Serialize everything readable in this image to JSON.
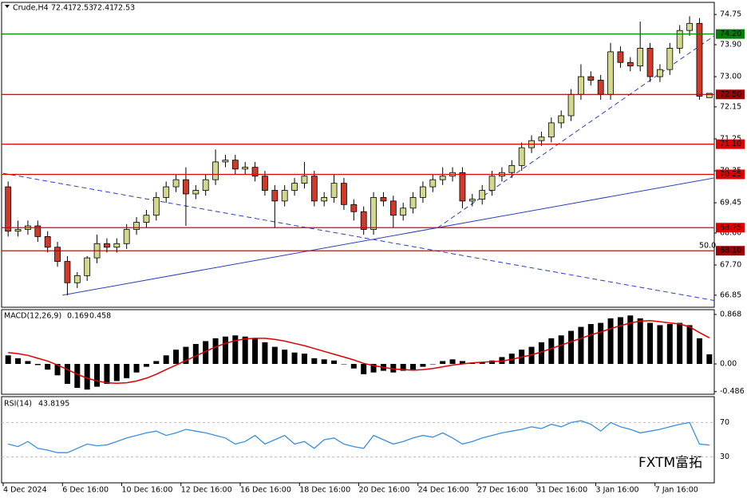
{
  "chart_data": {
    "type": "candlestick",
    "symbol": "Crude,H4",
    "ohlc_header": [
      72.41,
      72.53,
      72.41,
      72.53
    ],
    "xlim": [
      0,
      72
    ],
    "xticks": [
      {
        "value": 0,
        "label": "4 Dec 2024"
      },
      {
        "value": 6,
        "label": "6 Dec 16:00"
      },
      {
        "value": 12,
        "label": "10 Dec 16:00"
      },
      {
        "value": 18,
        "label": "12 Dec 16:00"
      },
      {
        "value": 24,
        "label": "16 Dec 16:00"
      },
      {
        "value": 30,
        "label": "18 Dec 16:00"
      },
      {
        "value": 36,
        "label": "20 Dec 16:00"
      },
      {
        "value": 42,
        "label": "24 Dec 16:00"
      },
      {
        "value": 48,
        "label": "27 Dec 16:00"
      },
      {
        "value": 54,
        "label": "31 Dec 16:00"
      },
      {
        "value": 60,
        "label": "3 Jan 16:00"
      },
      {
        "value": 66,
        "label": "7 Jan 16:00"
      }
    ],
    "ylim": [
      66.51,
      75.09
    ],
    "yticks": [
      74.75,
      {
        "value": 73.9,
        "label": "73.90"
      },
      {
        "value": 73,
        "label": "73.00"
      },
      72.15,
      71.25,
      70.35,
      69.45,
      {
        "value": 68.6,
        "label": "68.60"
      },
      {
        "value": 67.7,
        "label": "67.70"
      },
      66.85
    ],
    "colors": {
      "up": "#d2d98f",
      "down": "#d03a2a",
      "outline": "#000000"
    },
    "open": [
      69.9,
      68.65,
      68.7,
      68.8,
      68.5,
      68.2,
      67.8,
      67.2,
      67.4,
      67.9,
      68.3,
      68.2,
      68.3,
      68.7,
      68.9,
      69.1,
      69.6,
      69.9,
      70.1,
      69.7,
      69.8,
      70.1,
      70.6,
      70.65,
      70.4,
      70.45,
      70.2,
      69.8,
      69.5,
      69.8,
      70.0,
      70.2,
      69.5,
      69.6,
      70.0,
      69.4,
      69.2,
      68.7,
      69.6,
      69.5,
      69.1,
      69.3,
      69.6,
      69.9,
      70.1,
      70.2,
      70.3,
      69.5,
      69.55,
      69.8,
      70.2,
      70.3,
      70.5,
      71.0,
      71.2,
      71.3,
      71.7,
      71.9,
      72.5,
      73.0,
      72.9,
      72.5,
      73.7,
      73.4,
      73.3,
      73.8,
      73.0,
      73.2,
      73.8,
      74.3,
      74.5,
      72.41
    ],
    "high": [
      70.05,
      68.95,
      68.95,
      68.95,
      68.65,
      68.35,
      67.95,
      67.5,
      67.95,
      68.55,
      68.45,
      68.45,
      68.85,
      69.05,
      69.25,
      69.75,
      70.05,
      70.25,
      70.45,
      69.95,
      70.25,
      70.95,
      70.8,
      70.8,
      70.6,
      70.6,
      70.35,
      69.95,
      69.95,
      70.15,
      70.6,
      70.35,
      69.75,
      70.25,
      70.15,
      69.55,
      69.35,
      69.75,
      69.75,
      69.65,
      69.45,
      69.75,
      70.05,
      70.25,
      70.45,
      70.45,
      70.45,
      69.7,
      69.95,
      70.35,
      70.45,
      70.65,
      71.15,
      71.35,
      71.45,
      71.85,
      72.05,
      72.65,
      73.35,
      73.15,
      73.05,
      73.95,
      73.85,
      73.55,
      74.55,
      73.95,
      73.35,
      73.95,
      74.45,
      74.7,
      74.65,
      72.53
    ],
    "low": [
      68.5,
      68.5,
      68.55,
      68.35,
      68.05,
      67.65,
      66.85,
      67.05,
      67.25,
      67.75,
      68.05,
      68.05,
      68.15,
      68.55,
      68.75,
      68.95,
      69.45,
      69.75,
      68.8,
      69.55,
      69.65,
      69.95,
      70.45,
      70.25,
      70.25,
      70.05,
      69.65,
      68.75,
      69.35,
      69.65,
      69.85,
      69.35,
      69.35,
      69.45,
      69.25,
      68.95,
      68.55,
      68.55,
      69.35,
      68.75,
      68.95,
      69.15,
      69.45,
      69.75,
      69.95,
      70.05,
      69.3,
      69.35,
      69.4,
      69.65,
      70.05,
      70.15,
      70.35,
      70.85,
      71.05,
      71.15,
      71.55,
      71.75,
      72.35,
      72.75,
      72.35,
      72.35,
      73.25,
      73.15,
      73.15,
      72.85,
      72.85,
      73.05,
      73.65,
      74.15,
      72.35,
      72.41
    ],
    "close": [
      68.65,
      68.7,
      68.8,
      68.5,
      68.2,
      67.8,
      67.2,
      67.4,
      67.9,
      68.3,
      68.2,
      68.3,
      68.7,
      68.9,
      69.1,
      69.6,
      69.9,
      70.1,
      69.7,
      69.8,
      70.1,
      70.6,
      70.65,
      70.4,
      70.45,
      70.2,
      69.8,
      69.5,
      69.8,
      70.0,
      70.2,
      69.5,
      69.6,
      70.0,
      69.4,
      69.2,
      68.7,
      69.6,
      69.5,
      69.1,
      69.3,
      69.6,
      69.9,
      70.1,
      70.2,
      70.3,
      69.5,
      69.55,
      69.8,
      70.2,
      70.3,
      70.5,
      71.0,
      71.2,
      71.3,
      71.7,
      71.9,
      72.5,
      73.0,
      72.9,
      72.5,
      73.7,
      73.4,
      73.3,
      73.8,
      73.0,
      73.2,
      73.8,
      74.3,
      74.5,
      72.45,
      72.53
    ],
    "levels": [
      {
        "value": 74.2,
        "label": "74.20",
        "color": "#008000"
      },
      {
        "value": 72.5,
        "label": "72.50",
        "color": "#a00000"
      },
      {
        "value": 71.1,
        "label": "71.10",
        "color": "#e00000"
      },
      {
        "value": 70.25,
        "color": "#e00000"
      },
      {
        "value": 68.75,
        "color": "#e00000"
      },
      {
        "value": 68.1,
        "label": "68.10",
        "color": "#a00000"
      }
    ],
    "fib_label": "50.0",
    "trendlines": [
      {
        "from": [
          6,
          66.85
        ],
        "to": [
          72,
          70.15
        ],
        "style": "solid",
        "color": "#2a3fbf"
      },
      {
        "from": [
          0,
          70.28
        ],
        "to": [
          72,
          66.7
        ],
        "style": "dashed",
        "color": "#2a3fbf"
      },
      {
        "from": [
          44,
          68.75
        ],
        "to": [
          72,
          74.15
        ],
        "style": "dashed",
        "color": "#2a3fbf"
      }
    ],
    "macd": {
      "label": "MACD(12,26,9)",
      "ylim": [
        -0.532,
        0.952
      ],
      "yticks": [
        0.868,
        {
          "value": 0,
          "label": "0.00"
        },
        -0.486
      ],
      "histogram": {
        "color": "#000000",
        "values": [
          0.15,
          0.1,
          0.05,
          -0.02,
          -0.1,
          -0.2,
          -0.35,
          -0.42,
          -0.45,
          -0.4,
          -0.35,
          -0.3,
          -0.25,
          -0.15,
          -0.05,
          0.05,
          0.15,
          0.25,
          0.3,
          0.35,
          0.4,
          0.45,
          0.48,
          0.5,
          0.48,
          0.45,
          0.38,
          0.3,
          0.25,
          0.2,
          0.18,
          0.1,
          0.08,
          0.06,
          0.0,
          -0.08,
          -0.18,
          -0.15,
          -0.12,
          -0.15,
          -0.12,
          -0.1,
          -0.05,
          0.0,
          0.05,
          0.08,
          0.05,
          0.02,
          0.03,
          0.06,
          0.12,
          0.18,
          0.25,
          0.3,
          0.38,
          0.45,
          0.5,
          0.58,
          0.65,
          0.7,
          0.72,
          0.8,
          0.82,
          0.85,
          0.8,
          0.72,
          0.68,
          0.7,
          0.72,
          0.68,
          0.45,
          0.169
        ]
      },
      "signal": {
        "color": "#e00000",
        "values": [
          0.2,
          0.18,
          0.15,
          0.1,
          0.05,
          -0.02,
          -0.1,
          -0.18,
          -0.25,
          -0.3,
          -0.33,
          -0.34,
          -0.33,
          -0.3,
          -0.25,
          -0.18,
          -0.1,
          -0.02,
          0.06,
          0.14,
          0.22,
          0.3,
          0.36,
          0.41,
          0.44,
          0.45,
          0.45,
          0.43,
          0.4,
          0.36,
          0.32,
          0.27,
          0.22,
          0.17,
          0.12,
          0.07,
          0.01,
          -0.03,
          -0.06,
          -0.09,
          -0.1,
          -0.11,
          -0.1,
          -0.08,
          -0.05,
          -0.02,
          0.0,
          0.02,
          0.03,
          0.04,
          0.05,
          0.08,
          0.12,
          0.16,
          0.21,
          0.27,
          0.33,
          0.39,
          0.45,
          0.51,
          0.56,
          0.62,
          0.67,
          0.72,
          0.75,
          0.76,
          0.74,
          0.72,
          0.7,
          0.65,
          0.55,
          0.458
        ]
      }
    },
    "rsi": {
      "label": "RSI(14)",
      "ylim": [
        0,
        100
      ],
      "yticks": [
        70,
        30
      ],
      "color": "#3a8fdf",
      "values": [
        45,
        42,
        48,
        40,
        38,
        35,
        35,
        40,
        45,
        43,
        44,
        48,
        52,
        55,
        58,
        60,
        55,
        58,
        62,
        60,
        58,
        55,
        52,
        45,
        48,
        55,
        45,
        50,
        55,
        45,
        48,
        40,
        50,
        52,
        45,
        42,
        40,
        55,
        50,
        45,
        48,
        52,
        55,
        53,
        58,
        52,
        45,
        48,
        52,
        55,
        58,
        60,
        62,
        65,
        63,
        68,
        65,
        70,
        72,
        68,
        60,
        70,
        65,
        62,
        58,
        60,
        62,
        65,
        68,
        70,
        45,
        43.8195
      ]
    },
    "watermark": "FXTM富拓"
  }
}
